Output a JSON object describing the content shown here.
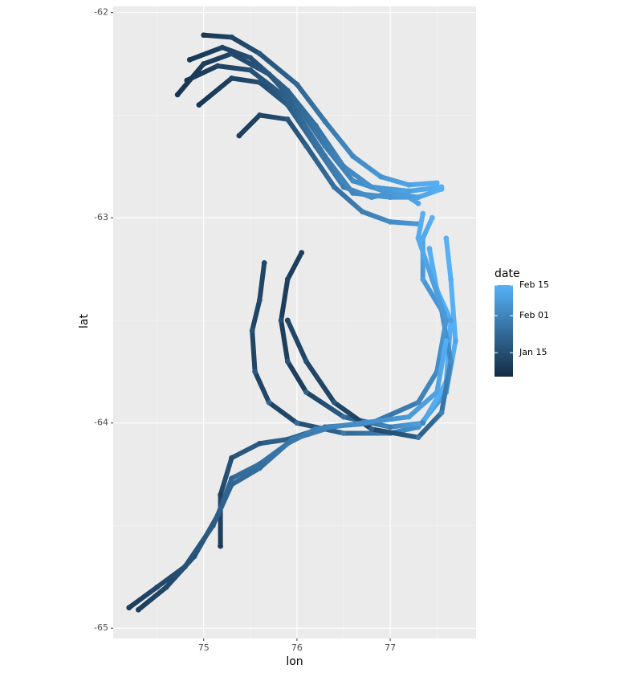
{
  "chart_data": {
    "type": "track-scatter",
    "x_label": "lon",
    "y_label": "lat",
    "xlim": [
      74.03,
      77.92
    ],
    "xticks": [
      75,
      76,
      77
    ],
    "xminor": [
      74.5,
      75.5,
      76.5,
      77.5
    ],
    "ylim": [
      -65.05,
      -61.97
    ],
    "yticks": [
      -65,
      -64,
      -63,
      -62
    ],
    "yminor": [
      -64.5,
      -63.5,
      -62.5
    ],
    "grid": true,
    "colorbar": {
      "title": "date",
      "lim": [
        4,
        46
      ],
      "colors": [
        "#132B43",
        "#56B1F7"
      ],
      "ticks": [
        {
          "value": 15,
          "label": "Jan 15"
        },
        {
          "value": 32,
          "label": "Feb 01"
        },
        {
          "value": 46,
          "label": "Feb 15"
        }
      ]
    },
    "tracks": [
      {
        "lon": [
          75.0,
          75.3,
          75.6,
          76.0,
          76.3,
          76.6,
          76.9,
          77.2,
          77.5
        ],
        "lat": [
          -62.11,
          -62.12,
          -62.2,
          -62.35,
          -62.53,
          -62.7,
          -62.8,
          -62.84,
          -62.83
        ],
        "date": [
          8,
          13,
          18,
          23,
          28,
          33,
          37,
          41,
          45
        ]
      },
      {
        "lon": [
          74.72,
          75.0,
          75.3,
          75.7,
          76.0,
          76.3,
          76.6,
          77.0,
          77.3,
          77.55
        ],
        "lat": [
          -62.4,
          -62.25,
          -62.2,
          -62.3,
          -62.45,
          -62.65,
          -62.82,
          -62.88,
          -62.9,
          -62.86
        ],
        "date": [
          7,
          11,
          15,
          20,
          25,
          30,
          35,
          39,
          42,
          45
        ]
      },
      {
        "lon": [
          74.95,
          75.3,
          75.6,
          75.9,
          76.2,
          76.5,
          76.8,
          77.1,
          77.3
        ],
        "lat": [
          -62.45,
          -62.32,
          -62.34,
          -62.45,
          -62.65,
          -62.85,
          -62.9,
          -62.87,
          -62.93
        ],
        "date": [
          8,
          12,
          16,
          20,
          25,
          30,
          35,
          39,
          42
        ]
      },
      {
        "lon": [
          75.38,
          75.6,
          75.9,
          76.1,
          76.4,
          76.7,
          77.0,
          77.3
        ],
        "lat": [
          -62.6,
          -62.5,
          -62.52,
          -62.65,
          -62.85,
          -62.97,
          -63.02,
          -63.03
        ],
        "date": [
          10,
          13,
          17,
          21,
          26,
          31,
          35,
          38
        ]
      },
      {
        "lon": [
          74.85,
          75.2,
          75.5,
          75.9,
          76.2,
          76.5,
          76.8,
          77.2,
          77.55
        ],
        "lat": [
          -62.23,
          -62.17,
          -62.22,
          -62.38,
          -62.55,
          -62.75,
          -62.85,
          -62.87,
          -62.85
        ],
        "date": [
          8,
          12,
          16,
          21,
          26,
          31,
          36,
          40,
          45
        ]
      },
      {
        "lon": [
          74.82,
          75.15,
          75.5,
          75.9,
          76.3,
          76.6,
          77.0,
          77.3
        ],
        "lat": [
          -62.33,
          -62.26,
          -62.28,
          -62.42,
          -62.7,
          -62.88,
          -62.9,
          -62.9
        ],
        "date": [
          8,
          12,
          16,
          21,
          27,
          32,
          37,
          41
        ]
      },
      {
        "lon": [
          75.65,
          75.6,
          75.52,
          75.55,
          75.7,
          76.0,
          76.5,
          77.0,
          77.3,
          77.6,
          77.7,
          77.65,
          77.6
        ],
        "lat": [
          -63.22,
          -63.4,
          -63.55,
          -63.75,
          -63.9,
          -64.0,
          -64.05,
          -64.05,
          -64.02,
          -63.85,
          -63.6,
          -63.3,
          -63.1
        ],
        "date": [
          12,
          14,
          16,
          19,
          22,
          25,
          29,
          33,
          36,
          39,
          42,
          45,
          46
        ]
      },
      {
        "lon": [
          76.05,
          75.9,
          75.83,
          75.9,
          76.1,
          76.5,
          77.0,
          77.35,
          77.6,
          77.65,
          77.5,
          77.42
        ],
        "lat": [
          -63.17,
          -63.3,
          -63.5,
          -63.7,
          -63.85,
          -63.97,
          -64.02,
          -64.0,
          -63.8,
          -63.5,
          -63.35,
          -63.15
        ],
        "date": [
          10,
          12,
          15,
          18,
          21,
          25,
          29,
          33,
          37,
          40,
          43,
          45
        ]
      },
      {
        "lon": [
          75.9,
          76.1,
          76.4,
          76.8,
          77.3,
          77.55,
          77.65,
          77.55,
          77.35,
          77.35,
          77.45
        ],
        "lat": [
          -63.5,
          -63.7,
          -63.9,
          -64.03,
          -64.07,
          -63.95,
          -63.7,
          -63.45,
          -63.3,
          -63.1,
          -63.0
        ],
        "date": [
          12,
          15,
          18,
          22,
          27,
          31,
          35,
          38,
          41,
          44,
          46
        ]
      },
      {
        "lon": [
          75.18,
          75.18,
          75.3,
          75.6,
          75.9,
          76.3,
          76.8,
          77.3,
          77.5,
          77.6,
          77.45,
          77.3,
          77.35
        ],
        "lat": [
          -64.6,
          -64.35,
          -64.17,
          -64.1,
          -64.08,
          -64.02,
          -64.0,
          -63.9,
          -63.75,
          -63.5,
          -63.3,
          -63.1,
          -62.98
        ],
        "date": [
          9,
          11,
          14,
          17,
          20,
          24,
          28,
          32,
          35,
          38,
          41,
          44,
          46
        ]
      },
      {
        "lon": [
          74.3,
          74.6,
          74.9,
          75.15,
          75.3,
          75.6,
          75.9,
          76.2,
          76.7,
          77.2,
          77.5,
          77.6
        ],
        "lat": [
          -64.91,
          -64.8,
          -64.65,
          -64.45,
          -64.27,
          -64.2,
          -64.1,
          -64.03,
          -64.0,
          -63.97,
          -63.85,
          -63.6
        ],
        "date": [
          10,
          13,
          16,
          19,
          22,
          25,
          28,
          31,
          35,
          39,
          42,
          45
        ]
      },
      {
        "lon": [
          74.2,
          74.5,
          74.8,
          75.1,
          75.3,
          75.6,
          75.95,
          76.3
        ],
        "lat": [
          -64.9,
          -64.8,
          -64.7,
          -64.5,
          -64.3,
          -64.22,
          -64.08,
          -64.03
        ],
        "date": [
          10,
          13,
          16,
          19,
          22,
          25,
          28,
          31
        ]
      }
    ]
  }
}
